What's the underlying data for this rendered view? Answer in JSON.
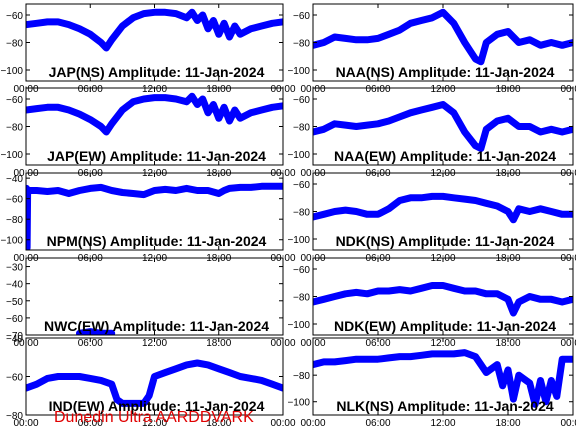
{
  "credit": "Dunedin Ultra AARDDVARK",
  "colors": {
    "trace": "#0000ff",
    "frame": "#000000",
    "credit": "#e00000"
  },
  "x_tick_labels": [
    "00:00",
    "06:00",
    "12:00",
    "18:00",
    "00:00"
  ],
  "chart_data": [
    {
      "type": "line",
      "title": "JAP(NS) Amplitude: 11-Jan-2024",
      "ylim": [
        -108,
        -52
      ],
      "yticks": [
        -100,
        -80,
        -60
      ],
      "ytick_labels": [
        "−100",
        "−80",
        "−60"
      ],
      "series": [
        {
          "x": [
            0,
            1,
            2,
            3,
            4,
            5,
            6,
            7,
            7.5,
            8,
            9,
            10,
            11,
            12,
            13,
            14,
            15,
            15.5,
            16,
            16.5,
            17,
            17.5,
            18,
            18.5,
            19,
            19.5,
            20,
            21,
            22,
            23,
            24
          ],
          "y": [
            -67,
            -66,
            -65,
            -65,
            -67,
            -70,
            -74,
            -80,
            -84,
            -78,
            -68,
            -62,
            -59,
            -58,
            -58,
            -59,
            -62,
            -58,
            -64,
            -60,
            -70,
            -64,
            -74,
            -66,
            -76,
            -68,
            -74,
            -70,
            -68,
            -66,
            -65
          ]
        }
      ]
    },
    {
      "type": "line",
      "title": "NAA(NS) Amplitude: 11-Jan-2024",
      "ylim": [
        -108,
        -52
      ],
      "yticks": [
        -100,
        -80,
        -60
      ],
      "ytick_labels": [
        "−100",
        "−80",
        "−60"
      ],
      "series": [
        {
          "x": [
            0,
            1,
            2,
            3,
            4,
            5,
            6,
            7,
            8,
            9,
            10,
            11,
            12,
            13,
            14,
            15,
            15.5,
            16,
            17,
            18,
            19,
            20,
            21,
            22,
            23,
            24
          ],
          "y": [
            -82,
            -80,
            -76,
            -77,
            -78,
            -78,
            -77,
            -74,
            -71,
            -66,
            -64,
            -62,
            -58,
            -66,
            -80,
            -92,
            -94,
            -80,
            -74,
            -72,
            -80,
            -78,
            -82,
            -80,
            -82,
            -80
          ]
        }
      ]
    },
    {
      "type": "line",
      "title": "JAP(EW) Amplitude: 11-Jan-2024",
      "ylim": [
        -108,
        -52
      ],
      "yticks": [
        -100,
        -80,
        -60
      ],
      "ytick_labels": [
        "−100",
        "−80",
        "−60"
      ],
      "series": [
        {
          "x": [
            0,
            1,
            2,
            3,
            4,
            5,
            6,
            7,
            7.5,
            8,
            9,
            10,
            11,
            12,
            13,
            14,
            15,
            15.5,
            16,
            16.5,
            17,
            17.5,
            18,
            18.5,
            19,
            19.5,
            20,
            21,
            22,
            23,
            24
          ],
          "y": [
            -68,
            -67,
            -66,
            -66,
            -68,
            -71,
            -75,
            -80,
            -84,
            -78,
            -68,
            -62,
            -60,
            -59,
            -59,
            -60,
            -62,
            -58,
            -64,
            -60,
            -70,
            -64,
            -74,
            -66,
            -76,
            -68,
            -74,
            -70,
            -68,
            -66,
            -65
          ]
        }
      ]
    },
    {
      "type": "line",
      "title": "NAA(EW) Amplitude: 11-Jan-2024",
      "ylim": [
        -108,
        -52
      ],
      "yticks": [
        -100,
        -80,
        -60
      ],
      "ytick_labels": [
        "−100",
        "−80",
        "−60"
      ],
      "series": [
        {
          "x": [
            0,
            1,
            2,
            3,
            4,
            5,
            6,
            7,
            8,
            9,
            10,
            11,
            12,
            13,
            14,
            15,
            15.5,
            16,
            17,
            18,
            19,
            20,
            21,
            22,
            23,
            24
          ],
          "y": [
            -84,
            -82,
            -78,
            -79,
            -80,
            -79,
            -78,
            -76,
            -73,
            -70,
            -68,
            -66,
            -64,
            -70,
            -84,
            -94,
            -96,
            -82,
            -76,
            -74,
            -80,
            -80,
            -84,
            -82,
            -84,
            -82
          ]
        }
      ]
    },
    {
      "type": "line",
      "title": "NPM(NS) Amplitude: 11-Jan-2024",
      "ylim": [
        -110,
        -35
      ],
      "yticks": [
        -100,
        -80,
        -60,
        -40
      ],
      "ytick_labels": [
        "−100",
        "−80",
        "−60",
        "−40"
      ],
      "series": [
        {
          "x": [
            0,
            0.05,
            0.1,
            0.15,
            0.3,
            1,
            2,
            3,
            4,
            5,
            6,
            7,
            8,
            9,
            10,
            11,
            12,
            13,
            14,
            15,
            16,
            17,
            18,
            18.5,
            19,
            20,
            21,
            22,
            23,
            24
          ],
          "y": [
            -110,
            -50,
            -108,
            -55,
            -52,
            -52,
            -53,
            -52,
            -55,
            -52,
            -50,
            -49,
            -52,
            -54,
            -55,
            -56,
            -52,
            -51,
            -52,
            -50,
            -52,
            -52,
            -55,
            -52,
            -50,
            -49,
            -49,
            -48,
            -48,
            -48
          ]
        }
      ]
    },
    {
      "type": "line",
      "title": "NDK(NS) Amplitude: 11-Jan-2024",
      "ylim": [
        -108,
        -52
      ],
      "yticks": [
        -100,
        -80,
        -60
      ],
      "ytick_labels": [
        "−100",
        "−80",
        "−60"
      ],
      "series": [
        {
          "x": [
            0,
            1,
            2,
            3,
            4,
            5,
            6,
            7,
            8,
            9,
            10,
            11,
            12,
            13,
            14,
            15,
            16,
            17,
            18,
            18.5,
            19,
            20,
            21,
            22,
            23,
            24
          ],
          "y": [
            -84,
            -82,
            -80,
            -79,
            -80,
            -82,
            -82,
            -78,
            -72,
            -70,
            -70,
            -69,
            -69,
            -70,
            -71,
            -72,
            -74,
            -76,
            -80,
            -86,
            -78,
            -80,
            -78,
            -80,
            -82,
            -82
          ]
        }
      ]
    },
    {
      "type": "line",
      "title": "NWC(EW) Amplitude: 11-Jan-2024",
      "ylim": [
        -70,
        -25
      ],
      "yticks": [
        -70,
        -60,
        -50,
        -40,
        -30
      ],
      "ytick_labels": [
        "−70",
        "−60",
        "−50",
        "−40",
        "−30"
      ],
      "series": [
        {
          "x": [
            0,
            1,
            2,
            3,
            4,
            5,
            6,
            7,
            8,
            9,
            10,
            11,
            12,
            13,
            14,
            15,
            16,
            17,
            18,
            19,
            20,
            21,
            22,
            23,
            24
          ],
          "y": [
            null,
            null,
            null,
            null,
            null,
            -69,
            -68,
            -69,
            -69,
            null,
            null,
            null,
            null,
            null,
            null,
            null,
            null,
            null,
            null,
            null,
            null,
            null,
            null,
            null,
            null
          ]
        }
      ]
    },
    {
      "type": "line",
      "title": "NDK(EW) Amplitude: 11-Jan-2024",
      "ylim": [
        -108,
        -52
      ],
      "yticks": [
        -100,
        -80,
        -60
      ],
      "ytick_labels": [
        "−100",
        "−80",
        "−60"
      ],
      "series": [
        {
          "x": [
            0,
            1,
            2,
            3,
            4,
            5,
            6,
            7,
            8,
            9,
            10,
            11,
            12,
            13,
            14,
            15,
            16,
            17,
            18,
            18.5,
            19,
            20,
            21,
            22,
            23,
            24
          ],
          "y": [
            -84,
            -82,
            -80,
            -78,
            -77,
            -78,
            -76,
            -76,
            -75,
            -76,
            -74,
            -72,
            -72,
            -74,
            -76,
            -76,
            -78,
            -78,
            -82,
            -92,
            -84,
            -80,
            -82,
            -82,
            -84,
            -82
          ]
        }
      ]
    },
    {
      "type": "line",
      "title": "IND(EW) Amplitude: 11-Jan-2024",
      "ylim": [
        -80,
        -40
      ],
      "yticks": [
        -80,
        -60,
        -40
      ],
      "ytick_labels": [
        "−80",
        "−60",
        "−40"
      ],
      "series": [
        {
          "x": [
            0,
            1,
            2,
            3,
            4,
            5,
            6,
            7,
            8,
            8.5,
            9,
            10,
            11,
            11.5,
            12,
            13,
            14,
            15,
            16,
            17,
            18,
            19,
            20,
            21,
            22,
            23,
            24
          ],
          "y": [
            -66,
            -64,
            -61,
            -60,
            -60,
            -60,
            -61,
            -62,
            -64,
            -72,
            -74,
            -74,
            -74,
            -70,
            -60,
            -58,
            -56,
            -54,
            -53,
            -54,
            -56,
            -58,
            -60,
            -61,
            -62,
            -64,
            -66
          ]
        }
      ]
    },
    {
      "type": "line",
      "title": "NLK(NS) Amplitude: 11-Jan-2024",
      "ylim": [
        -110,
        -52
      ],
      "yticks": [
        -100,
        -80
      ],
      "ytick_labels": [
        "−100",
        "−80"
      ],
      "series": [
        {
          "x": [
            0,
            1,
            2,
            3,
            4,
            5,
            6,
            7,
            8,
            9,
            10,
            11,
            12,
            13,
            14,
            15,
            16,
            17,
            17.5,
            18,
            18.5,
            19,
            20,
            20.5,
            21,
            21.5,
            22,
            22.5,
            23,
            24
          ],
          "y": [
            -72,
            -70,
            -70,
            -69,
            -68,
            -68,
            -68,
            -67,
            -66,
            -66,
            -65,
            -64,
            -64,
            -64,
            -63,
            -66,
            -78,
            -72,
            -88,
            -76,
            -98,
            -80,
            -86,
            -102,
            -84,
            -100,
            -84,
            -96,
            -68,
            -68
          ]
        }
      ]
    }
  ]
}
